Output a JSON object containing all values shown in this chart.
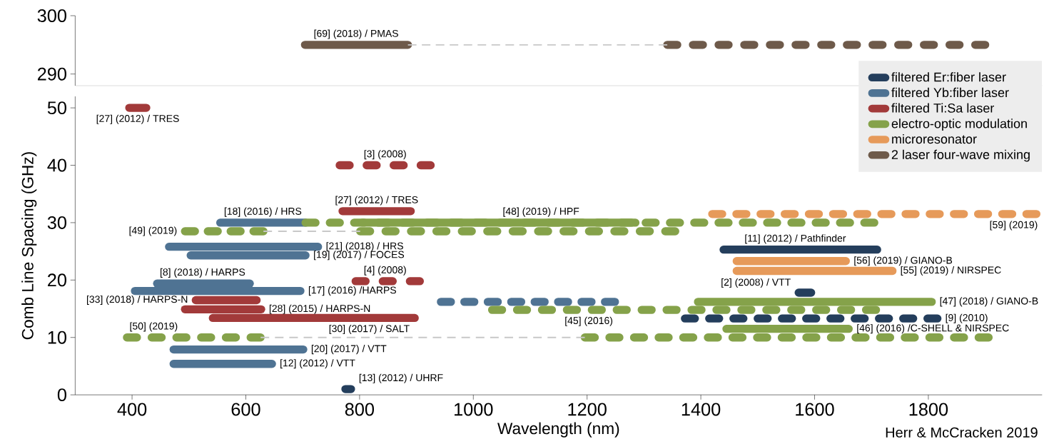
{
  "chart_data": [
    {
      "type": "line",
      "xlim": [
        300,
        2000
      ],
      "ylim": [
        288,
        300
      ],
      "yticks": [
        290,
        300
      ],
      "tick_labels": "y",
      "series": [
        {
          "name": "2 laser four-wave mixing",
          "color": "#6e5a4a",
          "x": [
            704,
            885
          ],
          "values": [
            295,
            295
          ],
          "line_style": "solid"
        },
        {
          "type": "step",
          "color": "#c8c8c8",
          "x": [
            885,
            1341
          ],
          "values": [
            295,
            295
          ],
          "line_style": "dashed"
        },
        {
          "color": "#6e5a4a",
          "x": [
            1341,
            1900
          ],
          "values": [
            295,
            295
          ],
          "line_style": "dashed"
        }
      ],
      "annotations": [
        {
          "text": "[69] (2018) / PMAS",
          "x": 794,
          "y": 295
        }
      ]
    },
    {
      "type": "line",
      "xlim": [
        300,
        2000
      ],
      "ylim": [
        0,
        52
      ],
      "xticks": [
        400,
        600,
        800,
        1000,
        1200,
        1400,
        1600,
        1800
      ],
      "yticks": [
        0,
        10,
        20,
        30,
        40,
        50
      ],
      "xlabel": "Wavelength (nm)",
      "ylabel": "Comb Line Spacing (GHz)",
      "legend": "top right",
      "series": [
        {
          "name": "filtered Er:fiber laser",
          "color": "#243e5c",
          "x": [
            1440,
            1710
          ],
          "values": [
            25.3,
            25.3
          ],
          "line_style": "solid"
        },
        {
          "name": "filtered Yb:fiber laser",
          "color": "#4f7393",
          "x": [
            555,
            705
          ],
          "values": [
            30,
            30
          ],
          "line_style": "solid"
        },
        {
          "name": "filtered Ti:Sa laser",
          "color": "#a23a3a",
          "x": [
            770,
            890
          ],
          "values": [
            32,
            32
          ],
          "line_style": "solid"
        },
        {
          "color": "#85a24a",
          "x": [
            705,
            1705
          ],
          "values": [
            30,
            30
          ],
          "line_style": "dashed"
        },
        {
          "name": "electro-optic modulation",
          "color": "#85a24a",
          "x": [
            805,
            1285
          ],
          "values": [
            30,
            30
          ],
          "line_style": "solid"
        },
        {
          "name": "microresonator",
          "color": "#e69a5a",
          "x": [
            1420,
            1990
          ],
          "values": [
            31.5,
            31.5
          ],
          "line_style": "dashed"
        },
        {
          "color": "#a23a3a",
          "x": [
            395,
            425
          ],
          "values": [
            50,
            50
          ],
          "line_style": "solid"
        },
        {
          "color": "#a23a3a",
          "x": [
            765,
            925
          ],
          "values": [
            40,
            40
          ],
          "line_style": "dashed"
        },
        {
          "color": "#85a24a",
          "x": [
            493,
            631
          ],
          "values": [
            28.5,
            28.5
          ],
          "line_style": "dashed"
        },
        {
          "type": "step",
          "color": "#c8c8c8",
          "x": [
            631,
            801
          ],
          "values": [
            28.5,
            28.5
          ],
          "line_style": "dashed"
        },
        {
          "color": "#85a24a",
          "x": [
            801,
            1355
          ],
          "values": [
            28.5,
            28.5
          ],
          "line_style": "dashed"
        },
        {
          "color": "#4f7393",
          "x": [
            465,
            727
          ],
          "values": [
            25.8,
            25.8
          ],
          "line_style": "solid"
        },
        {
          "color": "#4f7393",
          "x": [
            503,
            705
          ],
          "values": [
            24.3,
            24.3
          ],
          "line_style": "solid"
        },
        {
          "color": "#e69a5a",
          "x": [
            1463,
            1655
          ],
          "values": [
            23.3,
            23.3
          ],
          "line_style": "solid"
        },
        {
          "color": "#e69a5a",
          "x": [
            1463,
            1737
          ],
          "values": [
            21.6,
            21.6
          ],
          "line_style": "solid"
        },
        {
          "color": "#4f7393",
          "x": [
            444,
            607
          ],
          "values": [
            19.4,
            19.4
          ],
          "line_style": "solid"
        },
        {
          "color": "#a23a3a",
          "x": [
            793,
            906
          ],
          "values": [
            19.8,
            19.8
          ],
          "line_style": "dashed"
        },
        {
          "color": "#4f7393",
          "x": [
            405,
            696
          ],
          "values": [
            18.1,
            18.1
          ],
          "line_style": "solid"
        },
        {
          "color": "#243e5c",
          "x": [
            1572,
            1594
          ],
          "values": [
            17.8,
            17.8
          ],
          "line_style": "solid"
        },
        {
          "color": "#a23a3a",
          "x": [
            512,
            619
          ],
          "values": [
            16.5,
            16.5
          ],
          "line_style": "solid"
        },
        {
          "color": "#4f7393",
          "x": [
            943,
            1249
          ],
          "values": [
            16.2,
            16.2
          ],
          "line_style": "dashed"
        },
        {
          "color": "#85a24a",
          "x": [
            1395,
            1806
          ],
          "values": [
            16.2,
            16.2
          ],
          "line_style": "solid"
        },
        {
          "color": "#a23a3a",
          "x": [
            493,
            627
          ],
          "values": [
            14.9,
            14.9
          ],
          "line_style": "solid"
        },
        {
          "color": "#85a24a",
          "x": [
            1033,
            1708
          ],
          "values": [
            14.8,
            14.8
          ],
          "line_style": "dashed"
        },
        {
          "color": "#a23a3a",
          "x": [
            542,
            897
          ],
          "values": [
            13.4,
            13.4
          ],
          "line_style": "solid"
        },
        {
          "color": "#243e5c",
          "x": [
            1372,
            1816
          ],
          "values": [
            13.3,
            13.3
          ],
          "line_style": "dashed"
        },
        {
          "color": "#85a24a",
          "x": [
            1445,
            1660
          ],
          "values": [
            11.5,
            11.5
          ],
          "line_style": "solid"
        },
        {
          "color": "#85a24a",
          "x": [
            391,
            626
          ],
          "values": [
            10,
            10
          ],
          "line_style": "dashed"
        },
        {
          "type": "step",
          "color": "#c8c8c8",
          "x": [
            626,
            1196
          ],
          "values": [
            10,
            10
          ],
          "line_style": "dashed"
        },
        {
          "color": "#85a24a",
          "x": [
            1196,
            1906
          ],
          "values": [
            10,
            10
          ],
          "line_style": "dashed"
        },
        {
          "color": "#4f7393",
          "x": [
            473,
            701
          ],
          "values": [
            7.9,
            7.9
          ],
          "line_style": "solid"
        },
        {
          "color": "#4f7393",
          "x": [
            473,
            646
          ],
          "values": [
            5.4,
            5.4
          ],
          "line_style": "solid"
        },
        {
          "color": "#243e5c",
          "x": [
            775,
            785
          ],
          "values": [
            1,
            1
          ],
          "line_style": "solid"
        }
      ],
      "annotations": [
        {
          "text": "[27] (2012) / TRES",
          "x": 410,
          "y": 50
        },
        {
          "text": "[3] (2008)",
          "x": 845,
          "y": 40
        },
        {
          "text": "[27] (2012) / TRES",
          "x": 830,
          "y": 32
        },
        {
          "text": "[18] (2016) / HRS",
          "x": 630,
          "y": 30
        },
        {
          "text": "[48] (2019) / HPF",
          "x": 1119,
          "y": 30
        },
        {
          "text": "[49] (2019)",
          "x": 493,
          "y": 28.5
        },
        {
          "text": "[59] (2019)",
          "x": 1950,
          "y": 31.5
        },
        {
          "text": "[11] (2012) / Pathfinder",
          "x": 1566,
          "y": 25.3
        },
        {
          "text": "[21] (2018) / HRS",
          "x": 727,
          "y": 25.8
        },
        {
          "text": "[19] (2017) / FOCES",
          "x": 705,
          "y": 24.3
        },
        {
          "text": "[56] (2019) / GIANO-B",
          "x": 1655,
          "y": 23.3
        },
        {
          "text": "[55] (2019) / NIRSPEC",
          "x": 1737,
          "y": 21.6
        },
        {
          "text": "[8] (2018) / HARPS",
          "x": 524,
          "y": 19.4
        },
        {
          "text": "[4] (2008)",
          "x": 845,
          "y": 19.8
        },
        {
          "text": "[2] (2008) / VTT",
          "x": 1572,
          "y": 17.8
        },
        {
          "text": "[17] (2016) /HARPS",
          "x": 696,
          "y": 18.1
        },
        {
          "text": "[33] (2018) / HARPS-N",
          "x": 512,
          "y": 16.5
        },
        {
          "text": "[28] (2015) / HARPS-N",
          "x": 627,
          "y": 14.9
        },
        {
          "text": "[47] (2018) / GIANO-B",
          "x": 1806,
          "y": 16.2
        },
        {
          "text": "[45] (2016)",
          "x": 1203,
          "y": 14.8
        },
        {
          "text": "[9] (2010)",
          "x": 1816,
          "y": 13.3
        },
        {
          "text": "[30] (2017) / SALT",
          "x": 817,
          "y": 13.4
        },
        {
          "text": "[46] (2016) /C-SHELL & NIRSPEC",
          "x": 1660,
          "y": 11.5
        },
        {
          "text": "[50] (2019)",
          "x": 438,
          "y": 10
        },
        {
          "text": "[20] (2017) / VTT",
          "x": 701,
          "y": 7.9
        },
        {
          "text": "[12] (2012) / VTT",
          "x": 646,
          "y": 5.4
        },
        {
          "text": "[13] (2012) / UHRF",
          "x": 785,
          "y": 1
        },
        "Herr & McCracken 2019"
      ]
    }
  ]
}
